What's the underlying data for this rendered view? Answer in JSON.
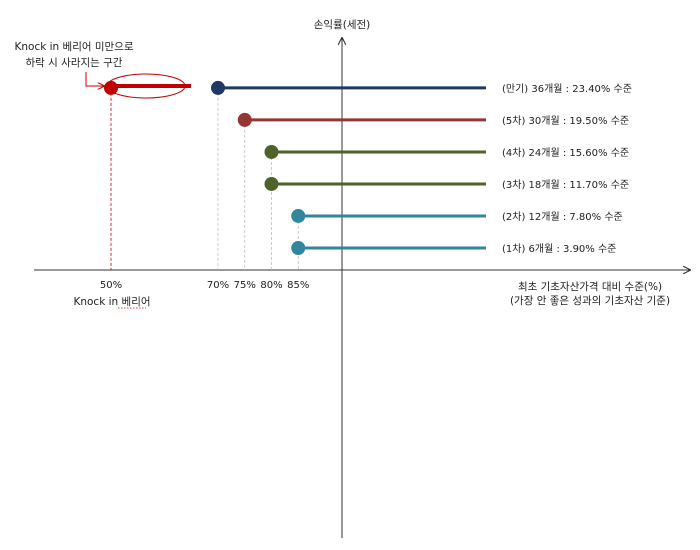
{
  "y_axis_label": "손익률(세전)",
  "x_axis_label": "최초 기초자산가격 대비 수준(%)",
  "x_axis_sublabel": "(가장 안 좋은 성과의 기초자산 기준)",
  "barrier": {
    "value": 50,
    "tick_label": "50%",
    "name": "Knock in 베리어",
    "callout_line1": "Knock in 베리어 미만으로",
    "callout_line2": "하락 시 사라지는 구간",
    "color": "#c00000"
  },
  "chart_data": {
    "type": "line",
    "x_ticks": [
      {
        "value": 50,
        "label": "50%"
      },
      {
        "value": 70,
        "label": "70%"
      },
      {
        "value": 75,
        "label": "75%"
      },
      {
        "value": 80,
        "label": "80%"
      },
      {
        "value": 85,
        "label": "85%"
      }
    ],
    "series": [
      {
        "name": "(만기) 36개월 : 23.40% 수준",
        "start": 70,
        "return_pct": 23.4,
        "color": "#1f3864"
      },
      {
        "name": "(5차) 30개월 : 19.50% 수준",
        "start": 75,
        "return_pct": 19.5,
        "color": "#943634"
      },
      {
        "name": "(4차) 24개월 : 15.60% 수준",
        "start": 80,
        "return_pct": 15.6,
        "color": "#4f6228"
      },
      {
        "name": "(3차) 18개월 : 11.70% 수준",
        "start": 80,
        "return_pct": 11.7,
        "color": "#4f6228"
      },
      {
        "name": "(2차) 12개월 : 7.80% 수준",
        "start": 85,
        "return_pct": 7.8,
        "color": "#31859c"
      },
      {
        "name": "(1차) 6개월 : 3.90% 수준",
        "start": 85,
        "return_pct": 3.9,
        "color": "#31859c"
      }
    ]
  }
}
